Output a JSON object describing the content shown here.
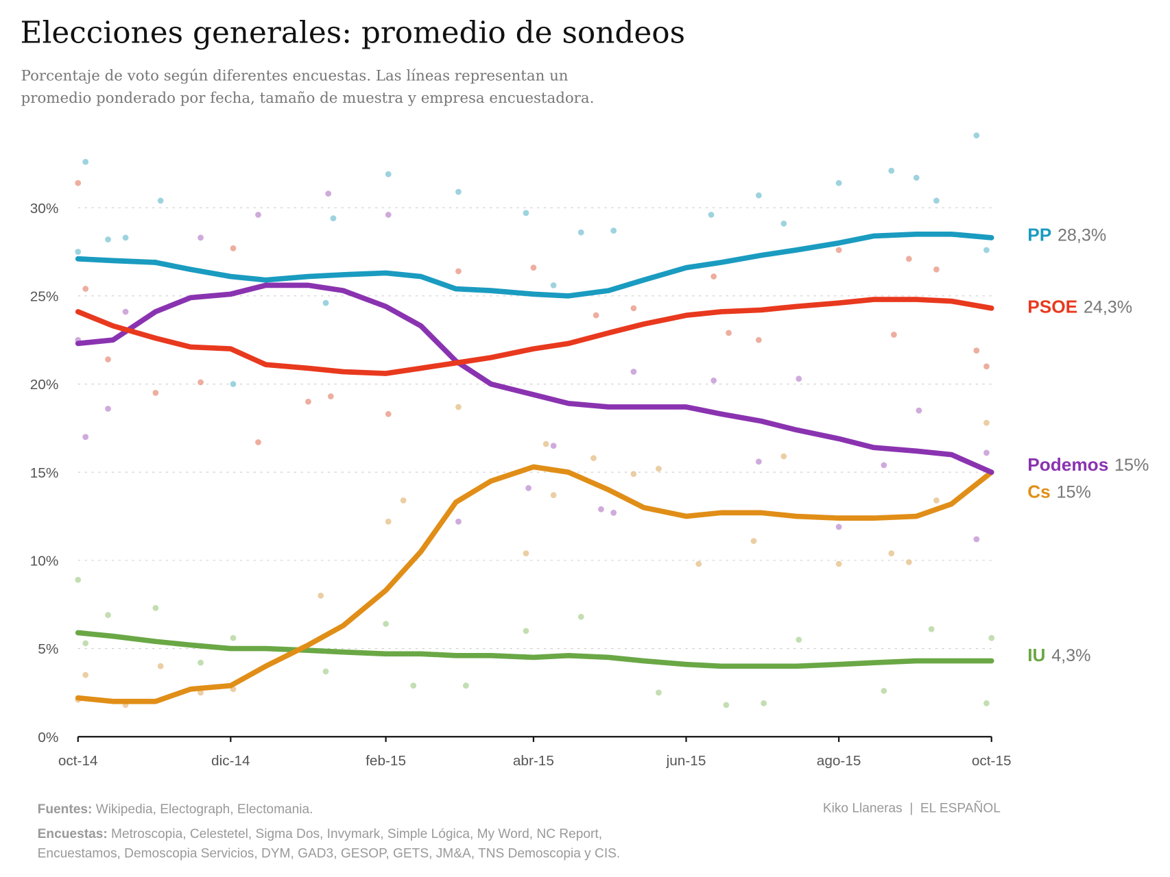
{
  "title": "Elecciones generales: promedio de sondeos",
  "subtitle": [
    "Porcentaje de voto según diferentes encuestas. Las líneas representan un",
    "promedio ponderado por fecha, tamaño de muestra y empresa encuestadora."
  ],
  "footer": {
    "sources_label": "Fuentes:",
    "sources": " Wikipedia, Electograph, Electomania.",
    "polls_label": "Encuestas:",
    "polls_line1": " Metroscopia, Celestetel, Sigma Dos, Invymark, Simple Lógica, My Word, NC Report,",
    "polls_line2": "Encuestamos, Demoscopia Servicios, DYM, GAD3, GESOP, GETS, JM&A, TNS Demoscopia y CIS.",
    "credit": "Kiko Llaneras  |  EL ESPAÑOL"
  },
  "chart_data": {
    "type": "line",
    "title": "Elecciones generales: promedio de sondeos",
    "xlabel": "",
    "ylabel": "",
    "xlim": [
      "2014-10-01",
      "2015-10-01"
    ],
    "ylim": [
      0,
      30
    ],
    "grid": true,
    "legend": "right (direct labels)",
    "x_ticks": [
      {
        "date": "2014-10-01",
        "label": "oct-14"
      },
      {
        "date": "2014-12-01",
        "label": "dic-14"
      },
      {
        "date": "2015-02-01",
        "label": "feb-15"
      },
      {
        "date": "2015-04-01",
        "label": "abr-15"
      },
      {
        "date": "2015-06-01",
        "label": "jun-15"
      },
      {
        "date": "2015-08-01",
        "label": "ago-15"
      },
      {
        "date": "2015-10-01",
        "label": "oct-15"
      }
    ],
    "y_ticks": [
      {
        "value": 0,
        "label": "0%"
      },
      {
        "value": 5,
        "label": "5%"
      },
      {
        "value": 10,
        "label": "10%"
      },
      {
        "value": 15,
        "label": "15%"
      },
      {
        "value": 20,
        "label": "20%"
      },
      {
        "value": 25,
        "label": "25%"
      },
      {
        "value": 30,
        "label": "30%"
      }
    ],
    "line_dates": [
      "2014-10-01",
      "2014-10-15",
      "2014-11-01",
      "2014-11-15",
      "2014-12-01",
      "2014-12-15",
      "2015-01-01",
      "2015-01-15",
      "2015-02-01",
      "2015-02-15",
      "2015-03-01",
      "2015-03-15",
      "2015-04-01",
      "2015-04-15",
      "2015-05-01",
      "2015-05-15",
      "2015-06-01",
      "2015-06-15",
      "2015-07-01",
      "2015-07-15",
      "2015-08-01",
      "2015-08-15",
      "2015-09-01",
      "2015-09-15",
      "2015-10-01"
    ],
    "series": [
      {
        "name": "PP",
        "final_label": "28,3%",
        "color": "#1a9bc0",
        "dot_color": "#8ccbd8",
        "values": [
          27.1,
          27.0,
          26.9,
          26.5,
          26.1,
          25.9,
          26.1,
          26.2,
          26.3,
          26.1,
          25.4,
          25.3,
          25.1,
          25.0,
          25.3,
          25.9,
          26.6,
          26.9,
          27.3,
          27.6,
          28.0,
          28.4,
          28.5,
          28.5,
          28.3
        ],
        "polls": [
          [
            "2014-10-01",
            27.5
          ],
          [
            "2014-10-04",
            32.6
          ],
          [
            "2014-10-13",
            28.2
          ],
          [
            "2014-10-20",
            28.3
          ],
          [
            "2014-11-01",
            26.9
          ],
          [
            "2014-11-03",
            30.4
          ],
          [
            "2014-12-02",
            20.0
          ],
          [
            "2015-01-08",
            24.6
          ],
          [
            "2015-01-11",
            29.4
          ],
          [
            "2015-02-02",
            31.9
          ],
          [
            "2015-03-02",
            30.9
          ],
          [
            "2015-03-29",
            29.7
          ],
          [
            "2015-04-09",
            25.6
          ],
          [
            "2015-04-20",
            28.6
          ],
          [
            "2015-05-03",
            28.7
          ],
          [
            "2015-06-11",
            29.6
          ],
          [
            "2015-06-30",
            30.7
          ],
          [
            "2015-07-10",
            29.1
          ],
          [
            "2015-08-01",
            31.4
          ],
          [
            "2015-08-22",
            32.1
          ],
          [
            "2015-09-01",
            31.7
          ],
          [
            "2015-09-09",
            30.4
          ],
          [
            "2015-09-25",
            34.1
          ],
          [
            "2015-09-29",
            27.6
          ]
        ]
      },
      {
        "name": "PSOE",
        "final_label": "24,3%",
        "color": "#e8391e",
        "dot_color": "#eaa08e",
        "values": [
          24.1,
          23.3,
          22.6,
          22.1,
          22.0,
          21.1,
          20.9,
          20.7,
          20.6,
          20.9,
          21.2,
          21.5,
          22.0,
          22.3,
          22.9,
          23.4,
          23.9,
          24.1,
          24.2,
          24.4,
          24.6,
          24.8,
          24.8,
          24.7,
          24.3
        ],
        "polls": [
          [
            "2014-10-01",
            31.4
          ],
          [
            "2014-10-04",
            25.4
          ],
          [
            "2014-10-13",
            21.4
          ],
          [
            "2014-11-01",
            19.5
          ],
          [
            "2014-11-19",
            20.1
          ],
          [
            "2014-12-02",
            27.7
          ],
          [
            "2014-12-12",
            16.7
          ],
          [
            "2015-01-01",
            19.0
          ],
          [
            "2015-01-10",
            19.3
          ],
          [
            "2015-02-02",
            18.3
          ],
          [
            "2015-03-02",
            26.4
          ],
          [
            "2015-04-01",
            26.6
          ],
          [
            "2015-04-26",
            23.9
          ],
          [
            "2015-05-11",
            24.3
          ],
          [
            "2015-06-12",
            26.1
          ],
          [
            "2015-06-18",
            22.9
          ],
          [
            "2015-06-30",
            22.5
          ],
          [
            "2015-08-01",
            27.6
          ],
          [
            "2015-08-23",
            22.8
          ],
          [
            "2015-08-29",
            27.1
          ],
          [
            "2015-09-09",
            26.5
          ],
          [
            "2015-09-25",
            21.9
          ],
          [
            "2015-09-29",
            21.0
          ]
        ]
      },
      {
        "name": "Podemos",
        "final_label": "15%",
        "color": "#8a33b0",
        "dot_color": "#c79bd6",
        "values": [
          22.3,
          22.5,
          24.1,
          24.9,
          25.1,
          25.6,
          25.6,
          25.3,
          24.4,
          23.3,
          21.3,
          20.0,
          19.4,
          18.9,
          18.7,
          18.7,
          18.7,
          18.3,
          17.9,
          17.4,
          16.9,
          16.4,
          16.2,
          16.0,
          15.0
        ],
        "polls": [
          [
            "2014-10-01",
            22.5
          ],
          [
            "2014-10-04",
            17.0
          ],
          [
            "2014-10-13",
            18.6
          ],
          [
            "2014-10-20",
            24.1
          ],
          [
            "2014-11-19",
            28.3
          ],
          [
            "2014-12-12",
            29.6
          ],
          [
            "2015-01-09",
            30.8
          ],
          [
            "2015-02-02",
            29.6
          ],
          [
            "2015-03-02",
            12.2
          ],
          [
            "2015-03-30",
            14.1
          ],
          [
            "2015-04-09",
            16.5
          ],
          [
            "2015-04-28",
            12.9
          ],
          [
            "2015-05-03",
            12.7
          ],
          [
            "2015-05-11",
            20.7
          ],
          [
            "2015-06-12",
            20.2
          ],
          [
            "2015-06-30",
            15.6
          ],
          [
            "2015-07-16",
            20.3
          ],
          [
            "2015-08-01",
            11.9
          ],
          [
            "2015-08-19",
            15.4
          ],
          [
            "2015-09-02",
            18.5
          ],
          [
            "2015-09-25",
            11.2
          ],
          [
            "2015-09-29",
            16.1
          ]
        ]
      },
      {
        "name": "Cs",
        "final_label": "15%",
        "color": "#e08e17",
        "dot_color": "#e8c594",
        "values": [
          2.2,
          2.0,
          2.0,
          2.7,
          2.9,
          4.0,
          5.2,
          6.3,
          8.3,
          10.5,
          13.3,
          14.5,
          15.3,
          15.0,
          14.0,
          13.0,
          12.5,
          12.7,
          12.7,
          12.5,
          12.4,
          12.4,
          12.5,
          13.2,
          15.0
        ],
        "polls": [
          [
            "2014-10-01",
            2.1
          ],
          [
            "2014-10-04",
            3.5
          ],
          [
            "2014-10-20",
            1.8
          ],
          [
            "2014-11-03",
            4.0
          ],
          [
            "2014-11-19",
            2.5
          ],
          [
            "2014-12-02",
            2.7
          ],
          [
            "2015-01-06",
            8.0
          ],
          [
            "2015-02-02",
            12.2
          ],
          [
            "2015-02-08",
            13.4
          ],
          [
            "2015-03-02",
            18.7
          ],
          [
            "2015-03-29",
            10.4
          ],
          [
            "2015-04-06",
            16.6
          ],
          [
            "2015-04-09",
            13.7
          ],
          [
            "2015-04-25",
            15.8
          ],
          [
            "2015-05-11",
            14.9
          ],
          [
            "2015-05-21",
            15.2
          ],
          [
            "2015-06-06",
            9.8
          ],
          [
            "2015-06-28",
            11.1
          ],
          [
            "2015-07-10",
            15.9
          ],
          [
            "2015-08-01",
            9.8
          ],
          [
            "2015-08-22",
            10.4
          ],
          [
            "2015-08-29",
            9.9
          ],
          [
            "2015-09-09",
            13.4
          ],
          [
            "2015-09-29",
            17.8
          ]
        ]
      },
      {
        "name": "IU",
        "final_label": "4,3%",
        "color": "#6aa745",
        "dot_color": "#b9d8a5",
        "values": [
          5.9,
          5.7,
          5.4,
          5.2,
          5.0,
          5.0,
          4.9,
          4.8,
          4.7,
          4.7,
          4.6,
          4.6,
          4.5,
          4.6,
          4.5,
          4.3,
          4.1,
          4.0,
          4.0,
          4.0,
          4.1,
          4.2,
          4.3,
          4.3,
          4.3
        ],
        "polls": [
          [
            "2014-10-01",
            8.9
          ],
          [
            "2014-10-04",
            5.3
          ],
          [
            "2014-10-13",
            6.9
          ],
          [
            "2014-11-01",
            7.3
          ],
          [
            "2014-11-19",
            4.2
          ],
          [
            "2014-12-02",
            5.6
          ],
          [
            "2015-01-08",
            3.7
          ],
          [
            "2015-02-01",
            6.4
          ],
          [
            "2015-02-12",
            2.9
          ],
          [
            "2015-03-05",
            2.9
          ],
          [
            "2015-03-29",
            6.0
          ],
          [
            "2015-04-20",
            6.8
          ],
          [
            "2015-05-21",
            2.5
          ],
          [
            "2015-06-17",
            1.8
          ],
          [
            "2015-07-02",
            1.9
          ],
          [
            "2015-07-16",
            5.5
          ],
          [
            "2015-08-19",
            2.6
          ],
          [
            "2015-09-07",
            6.1
          ],
          [
            "2015-09-29",
            1.9
          ],
          [
            "2015-10-01",
            5.6
          ]
        ]
      }
    ]
  }
}
